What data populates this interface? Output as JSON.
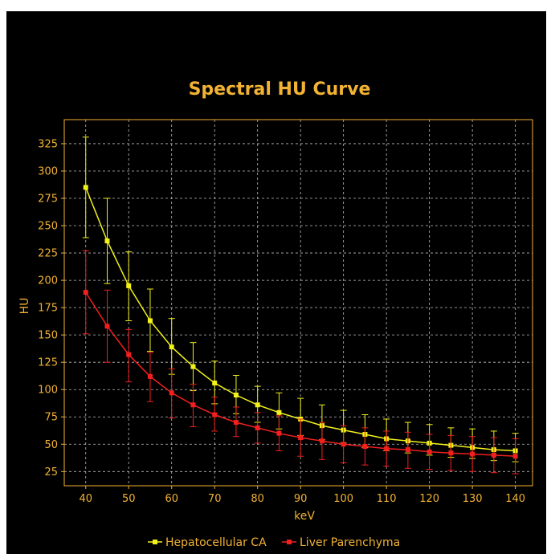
{
  "chart_data": {
    "type": "line",
    "title": "Spectral HU Curve",
    "xlabel": "keV",
    "ylabel": "HU",
    "x": [
      40,
      45,
      50,
      55,
      60,
      65,
      70,
      75,
      80,
      85,
      90,
      95,
      100,
      105,
      110,
      115,
      120,
      125,
      130,
      135,
      140
    ],
    "x_ticks": [
      40,
      50,
      60,
      70,
      80,
      90,
      100,
      110,
      120,
      130,
      140
    ],
    "y_ticks": [
      25,
      50,
      75,
      100,
      125,
      150,
      175,
      200,
      225,
      250,
      275,
      300,
      325
    ],
    "xlim": [
      35,
      144
    ],
    "ylim": [
      12,
      347
    ],
    "grid": true,
    "legend_position": "bottom-center",
    "series": [
      {
        "name": "Hepatocellular CA",
        "color": "#f2f21a",
        "values": [
          285,
          236,
          195,
          163,
          139,
          121,
          106,
          95,
          86,
          79,
          73,
          67,
          63,
          59,
          55,
          53,
          51,
          49,
          47,
          45,
          44
        ],
        "err_low": [
          239,
          197,
          163,
          135,
          114,
          99,
          87,
          78,
          70,
          64,
          58,
          54,
          51,
          47,
          44,
          42,
          40,
          38,
          37,
          35,
          34
        ],
        "err_high": [
          331,
          275,
          226,
          192,
          165,
          143,
          126,
          113,
          103,
          97,
          92,
          86,
          81,
          77,
          73,
          70,
          68,
          65,
          64,
          62,
          60
        ]
      },
      {
        "name": "Liver Parenchyma",
        "color": "#f21f1f",
        "values": [
          189,
          158,
          132,
          112,
          97,
          86,
          77,
          70,
          65,
          60,
          56,
          53,
          50,
          48,
          46,
          45,
          43,
          42,
          41,
          40,
          39
        ],
        "err_low": [
          151,
          125,
          107,
          89,
          74,
          66,
          62,
          57,
          51,
          44,
          39,
          36,
          33,
          31,
          30,
          28,
          27,
          26,
          25,
          24,
          23
        ],
        "err_high": [
          227,
          191,
          155,
          134,
          119,
          105,
          93,
          84,
          79,
          76,
          73,
          70,
          67,
          65,
          62,
          61,
          59,
          58,
          57,
          56,
          55
        ]
      }
    ]
  },
  "colors": {
    "background": "#000000",
    "axis": "#f2b233",
    "grid": "#bdbdbd",
    "text": "#f2b233"
  }
}
